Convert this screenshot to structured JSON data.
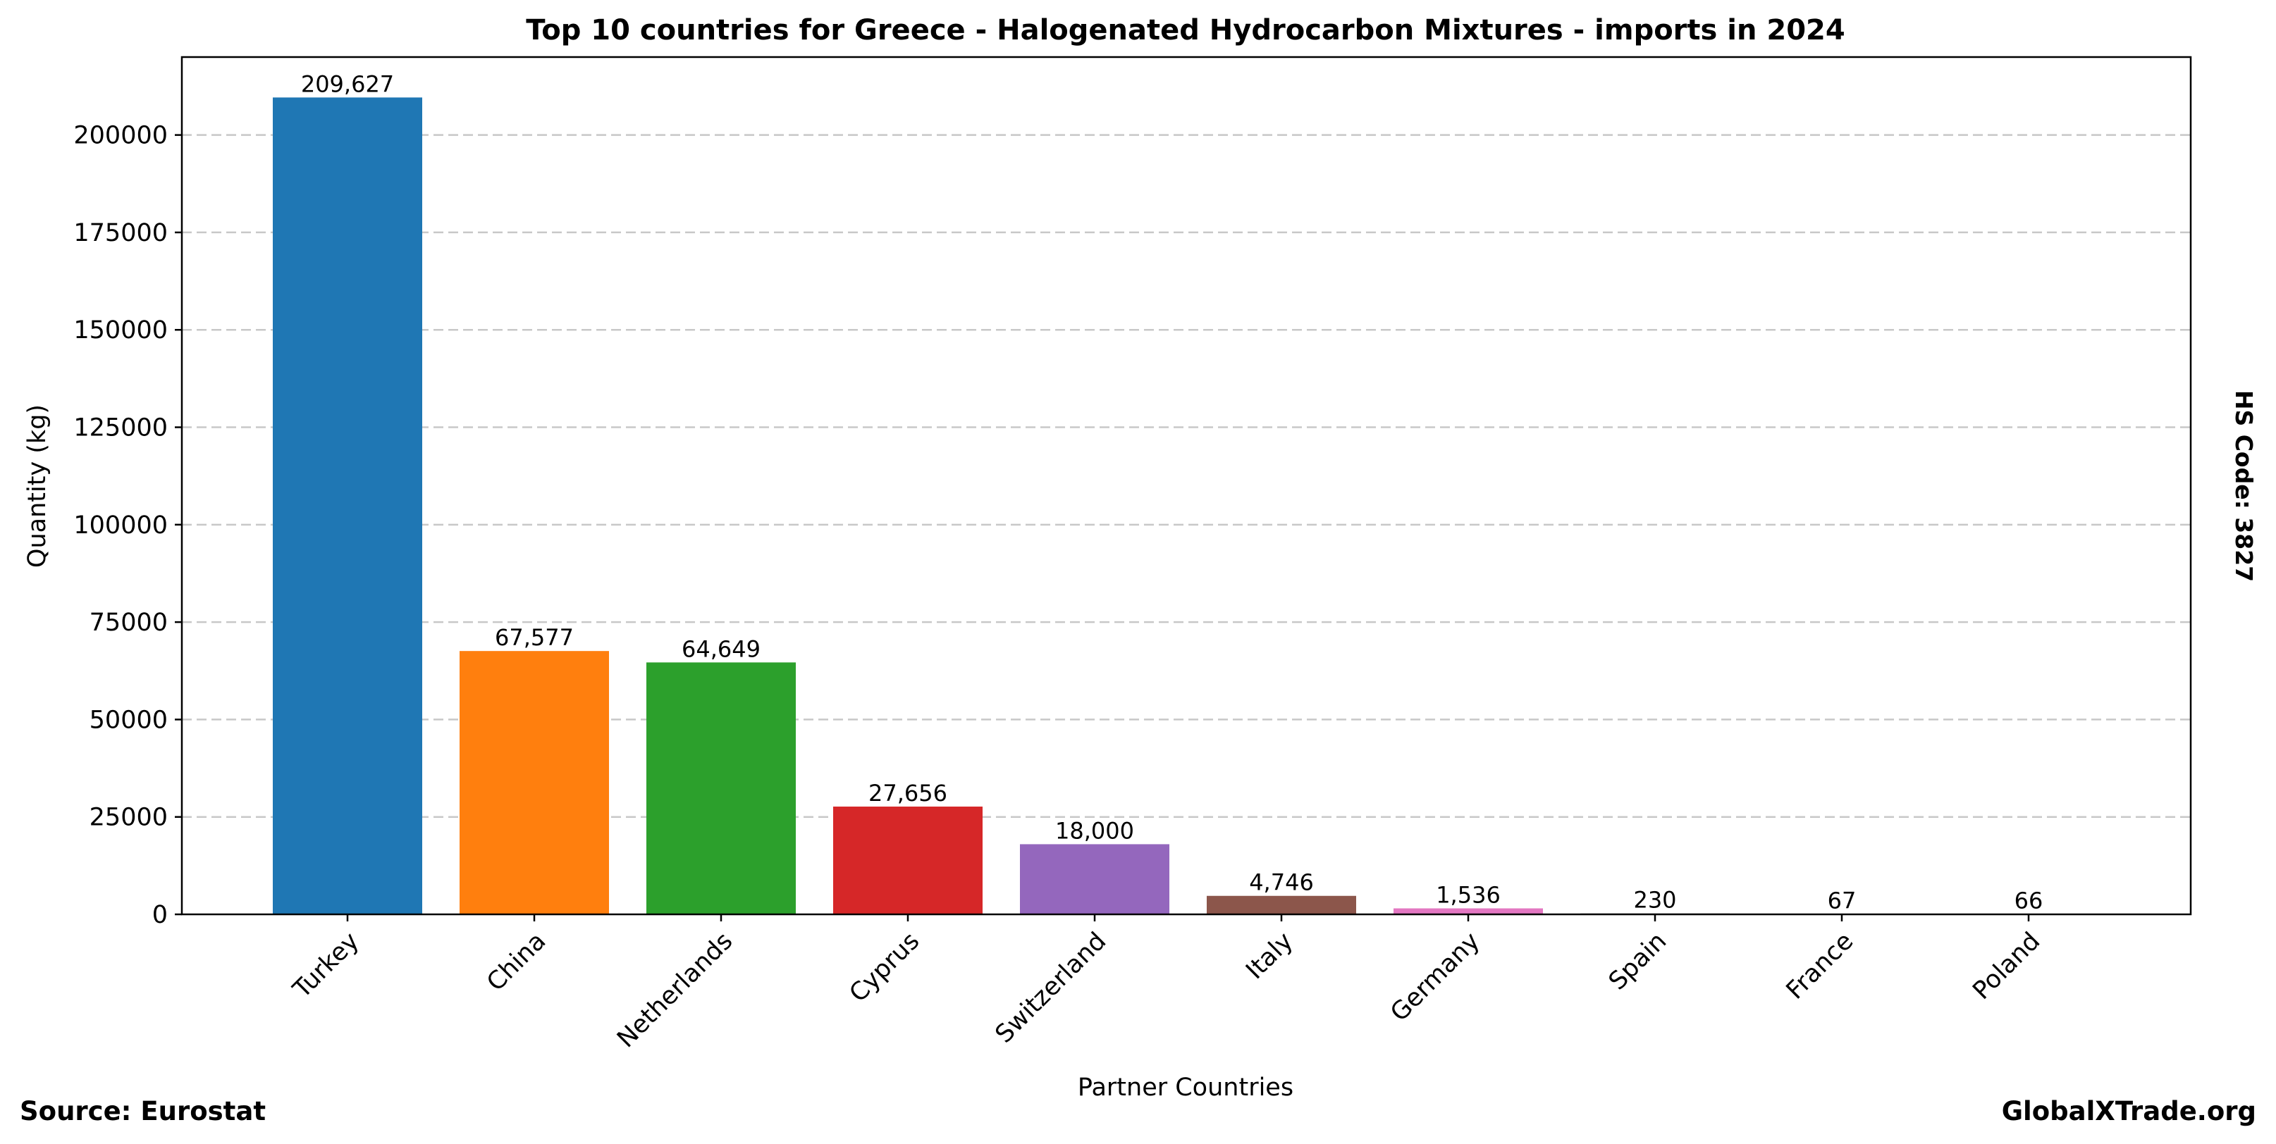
{
  "chart_data": {
    "type": "bar",
    "title": "Top 10 countries for Greece - Halogenated Hydrocarbon Mixtures - imports in 2024",
    "xlabel": "Partner Countries",
    "ylabel": "Quantity (kg)",
    "categories": [
      "Turkey",
      "China",
      "Netherlands",
      "Cyprus",
      "Switzerland",
      "Italy",
      "Germany",
      "Spain",
      "France",
      "Poland"
    ],
    "values": [
      209627,
      67577,
      64649,
      27656,
      18000,
      4746,
      1536,
      230,
      67,
      66
    ],
    "value_labels": [
      "209,627",
      "67,577",
      "64,649",
      "27,656",
      "18,000",
      "4,746",
      "1,536",
      "230",
      "67",
      "66"
    ],
    "colors": [
      "#1f77b4",
      "#ff7f0e",
      "#2ca02c",
      "#d62728",
      "#9467bd",
      "#8c564b",
      "#e377c2",
      "#7f7f7f",
      "#bcbd22",
      "#17becf"
    ],
    "ylim": [
      0,
      220000
    ],
    "yticks": [
      0,
      25000,
      50000,
      75000,
      100000,
      125000,
      150000,
      175000,
      200000
    ],
    "ytick_labels": [
      "0",
      "25000",
      "50000",
      "75000",
      "100000",
      "125000",
      "150000",
      "175000",
      "200000"
    ],
    "grid": "y-dashed",
    "legend": "none"
  },
  "annotations": {
    "hs_code": "HS Code: 3827",
    "source": "Source: Eurostat",
    "brand": "GlobalXTrade.org"
  }
}
